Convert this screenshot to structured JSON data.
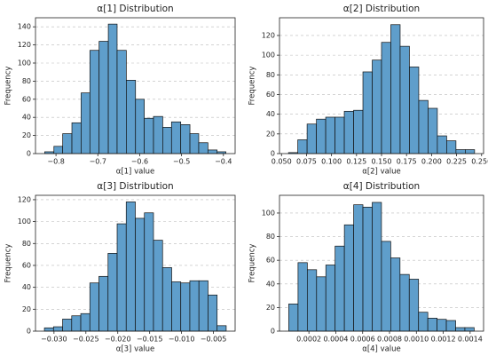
{
  "chart_data": [
    {
      "type": "histogram",
      "title": "α[1] Distribution",
      "xlabel": "α[1] value",
      "ylabel": "Frequency",
      "color": "#5f9ecb",
      "grid": true,
      "bins": [
        -0.827,
        -0.805,
        -0.784,
        -0.762,
        -0.74,
        -0.719,
        -0.697,
        -0.675,
        -0.654,
        -0.632,
        -0.61,
        -0.589,
        -0.567,
        -0.545,
        -0.524,
        -0.502,
        -0.48,
        -0.459,
        -0.437,
        -0.415,
        -0.394
      ],
      "counts": [
        2,
        8,
        22,
        34,
        67,
        114,
        124,
        143,
        114,
        81,
        60,
        39,
        41,
        29,
        35,
        32,
        22,
        12,
        4,
        2
      ],
      "xlim": [
        -0.849,
        -0.372
      ],
      "ylim": [
        0,
        150
      ],
      "xticks": [
        {
          "value": -0.8,
          "label": "−0.8"
        },
        {
          "value": -0.7,
          "label": "−0.7"
        },
        {
          "value": -0.6,
          "label": "−0.6"
        },
        {
          "value": -0.5,
          "label": "−0.5"
        },
        {
          "value": -0.4,
          "label": "−0.4"
        }
      ],
      "yticks": [
        0,
        20,
        40,
        60,
        80,
        100,
        120,
        140
      ]
    },
    {
      "type": "histogram",
      "title": "α[2] Distribution",
      "xlabel": "α[2] value",
      "ylabel": "Frequency",
      "color": "#5f9ecb",
      "grid": true,
      "bins": [
        0.057,
        0.0663,
        0.0756,
        0.0849,
        0.0942,
        0.1035,
        0.1128,
        0.1221,
        0.1314,
        0.1407,
        0.15,
        0.1593,
        0.1686,
        0.1779,
        0.1872,
        0.1965,
        0.2058,
        0.2151,
        0.2244,
        0.2337,
        0.243
      ],
      "counts": [
        1,
        14,
        30,
        35,
        37,
        37,
        43,
        44,
        83,
        95,
        113,
        131,
        109,
        88,
        54,
        46,
        18,
        13,
        4,
        4
      ],
      "xlim": [
        0.048,
        0.252
      ],
      "ylim": [
        0,
        138
      ],
      "xticks": [
        {
          "value": 0.05,
          "label": "0.050"
        },
        {
          "value": 0.075,
          "label": "0.075"
        },
        {
          "value": 0.1,
          "label": "0.100"
        },
        {
          "value": 0.125,
          "label": "0.125"
        },
        {
          "value": 0.15,
          "label": "0.150"
        },
        {
          "value": 0.175,
          "label": "0.175"
        },
        {
          "value": 0.2,
          "label": "0.200"
        },
        {
          "value": 0.225,
          "label": "0.225"
        },
        {
          "value": 0.25,
          "label": "0.250"
        }
      ],
      "yticks": [
        0,
        20,
        40,
        60,
        80,
        100,
        120
      ]
    },
    {
      "type": "histogram",
      "title": "α[3] Distribution",
      "xlabel": "α[3] value",
      "ylabel": "Frequency",
      "color": "#5f9ecb",
      "grid": true,
      "bins": [
        -0.0315,
        -0.030075,
        -0.02865,
        -0.027225,
        -0.0258,
        -0.024375,
        -0.02295,
        -0.021525,
        -0.0201,
        -0.018675,
        -0.01725,
        -0.015825,
        -0.0144,
        -0.012975,
        -0.01155,
        -0.010125,
        -0.0087,
        -0.007275,
        -0.00585,
        -0.004425,
        -0.003
      ],
      "counts": [
        3,
        4,
        11,
        14,
        16,
        44,
        50,
        71,
        98,
        118,
        103,
        108,
        83,
        58,
        45,
        44,
        46,
        46,
        33,
        5
      ],
      "xlim": [
        -0.0329,
        -0.0016
      ],
      "ylim": [
        0,
        124
      ],
      "xticks": [
        {
          "value": -0.03,
          "label": "−0.030"
        },
        {
          "value": -0.025,
          "label": "−0.025"
        },
        {
          "value": -0.02,
          "label": "−0.020"
        },
        {
          "value": -0.015,
          "label": "−0.015"
        },
        {
          "value": -0.01,
          "label": "−0.010"
        },
        {
          "value": -0.005,
          "label": "−0.005"
        }
      ],
      "yticks": [
        0,
        20,
        40,
        60,
        80,
        100,
        120
      ]
    },
    {
      "type": "histogram",
      "title": "α[4] Distribution",
      "xlabel": "α[4] value",
      "ylabel": "Frequency",
      "color": "#5f9ecb",
      "grid": true,
      "bins": [
        5e-05,
        0.000119,
        0.000188,
        0.000257,
        0.000326,
        0.000395,
        0.000464,
        0.000533,
        0.000602,
        0.000671,
        0.00074,
        0.000809,
        0.000878,
        0.000947,
        0.001016,
        0.001085,
        0.001154,
        0.001223,
        0.001292,
        0.001361,
        0.00143
      ],
      "counts": [
        23,
        58,
        52,
        46,
        56,
        72,
        90,
        107,
        105,
        109,
        76,
        62,
        48,
        44,
        16,
        11,
        10,
        9,
        3,
        3
      ],
      "xlim": [
        -1.9e-05,
        0.0015
      ],
      "ylim": [
        0,
        115
      ],
      "xticks": [
        {
          "value": 0.0002,
          "label": "0.0002"
        },
        {
          "value": 0.0004,
          "label": "0.0004"
        },
        {
          "value": 0.0006,
          "label": "0.0006"
        },
        {
          "value": 0.0008,
          "label": "0.0008"
        },
        {
          "value": 0.001,
          "label": "0.0010"
        },
        {
          "value": 0.0012,
          "label": "0.0012"
        },
        {
          "value": 0.0014,
          "label": "0.0014"
        }
      ],
      "yticks": [
        0,
        20,
        40,
        60,
        80,
        100
      ]
    }
  ]
}
